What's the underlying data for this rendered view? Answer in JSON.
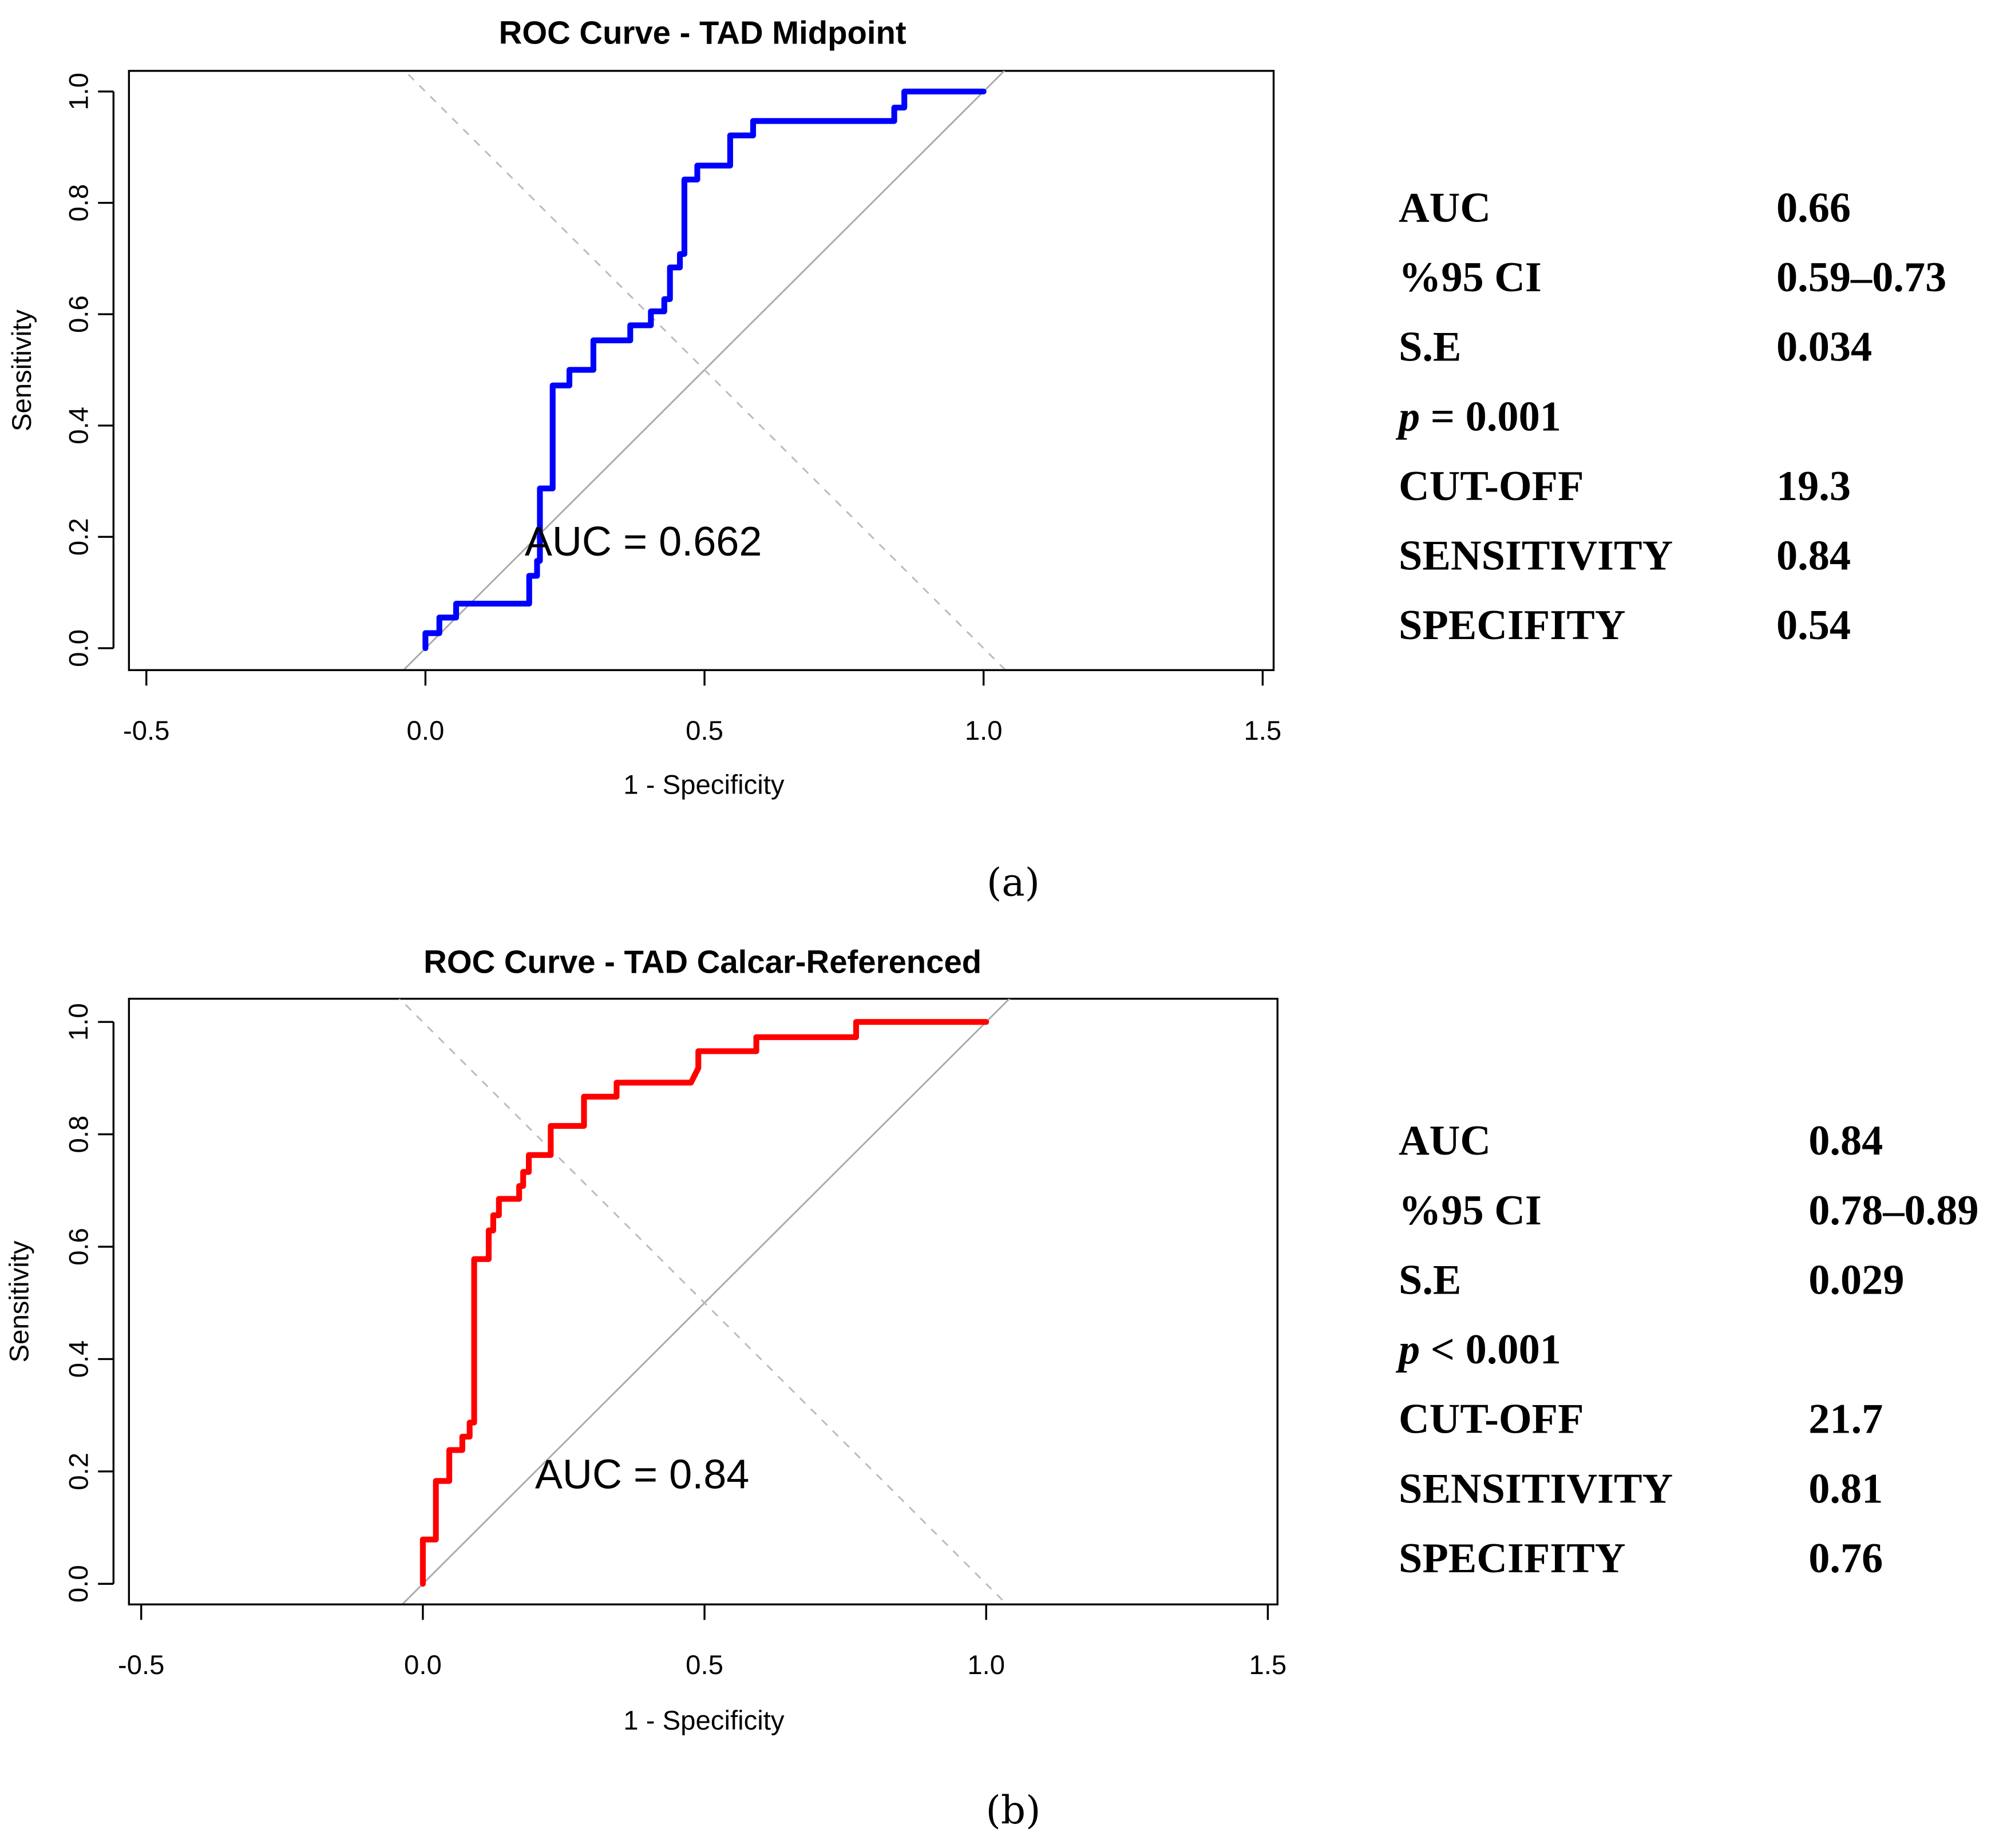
{
  "chart_data": [
    {
      "type": "line",
      "panel_label": "(a)",
      "title": "ROC Curve - TAD Midpoint",
      "xlabel": "1 - Specificity",
      "ylabel": "Sensitivity",
      "xlim": [
        -0.5,
        1.5
      ],
      "ylim": [
        0,
        1
      ],
      "xticks": [
        "-0.5",
        "0.0",
        "0.5",
        "1.0",
        "1.5"
      ],
      "yticks": [
        "0.0",
        "0.2",
        "0.4",
        "0.6",
        "0.8",
        "1.0"
      ],
      "annotation": "AUC = 0.662",
      "color": "#0000ff",
      "series": [
        {
          "name": "TAD Midpoint",
          "x": [
            0,
            0,
            0.025,
            0.025,
            0.055,
            0.055,
            0.186,
            0.186,
            0.2,
            0.2,
            0.205,
            0.205,
            0.228,
            0.228,
            0.258,
            0.258,
            0.301,
            0.301,
            0.367,
            0.367,
            0.404,
            0.404,
            0.428,
            0.428,
            0.438,
            0.438,
            0.456,
            0.456,
            0.464,
            0.464,
            0.487,
            0.487,
            0.546,
            0.546,
            0.587,
            0.587,
            0.84,
            0.84,
            0.858,
            0.858,
            1.0
          ],
          "y": [
            0,
            0.027,
            0.027,
            0.055,
            0.055,
            0.08,
            0.08,
            0.13,
            0.13,
            0.157,
            0.157,
            0.287,
            0.287,
            0.472,
            0.472,
            0.5,
            0.5,
            0.553,
            0.553,
            0.58,
            0.58,
            0.605,
            0.605,
            0.627,
            0.627,
            0.684,
            0.684,
            0.708,
            0.708,
            0.842,
            0.842,
            0.867,
            0.867,
            0.921,
            0.921,
            0.947,
            0.947,
            0.971,
            0.971,
            1.0,
            1.0
          ]
        }
      ],
      "stats": [
        {
          "label": "AUC",
          "value": "0.66"
        },
        {
          "label": "%95 CI",
          "value": "0.59–0.73"
        },
        {
          "label": "S.E",
          "value": "0.034"
        },
        {
          "label_p": "p",
          "label": " = 0.001",
          "value": ""
        },
        {
          "label": "CUT-OFF",
          "value": "19.3"
        },
        {
          "label": "SENSITIVITY",
          "value": "0.84"
        },
        {
          "label": "SPECIFITY",
          "value": "0.54"
        }
      ]
    },
    {
      "type": "line",
      "panel_label": "(b)",
      "title": "ROC Curve - TAD Calcar-Referenced",
      "xlabel": "1 - Specificity",
      "ylabel": "Sensitivity",
      "xlim": [
        -0.5,
        1.5
      ],
      "ylim": [
        0,
        1
      ],
      "xticks": [
        "-0.5",
        "0.0",
        "0.5",
        "1.0",
        "1.5"
      ],
      "yticks": [
        "0.0",
        "0.2",
        "0.4",
        "0.6",
        "0.8",
        "1.0"
      ],
      "annotation": "AUC = 0.84",
      "color": "#ff0000",
      "series": [
        {
          "name": "TAD Calcar-Referenced",
          "x": [
            0,
            0,
            0.023,
            0.023,
            0.047,
            0.047,
            0.07,
            0.07,
            0.083,
            0.083,
            0.091,
            0.091,
            0.117,
            0.117,
            0.125,
            0.125,
            0.135,
            0.135,
            0.171,
            0.171,
            0.178,
            0.178,
            0.188,
            0.188,
            0.227,
            0.227,
            0.286,
            0.286,
            0.344,
            0.344,
            0.476,
            0.489,
            0.489,
            0.592,
            0.592,
            0.769,
            0.769,
            1.0
          ],
          "y": [
            0,
            0.079,
            0.079,
            0.183,
            0.183,
            0.238,
            0.238,
            0.262,
            0.262,
            0.287,
            0.287,
            0.578,
            0.578,
            0.629,
            0.629,
            0.656,
            0.656,
            0.685,
            0.685,
            0.708,
            0.708,
            0.733,
            0.733,
            0.763,
            0.763,
            0.815,
            0.815,
            0.867,
            0.867,
            0.892,
            0.892,
            0.918,
            0.948,
            0.948,
            0.973,
            0.973,
            1.0,
            1.0
          ]
        }
      ],
      "stats": [
        {
          "label": "AUC",
          "value": "0.84"
        },
        {
          "label": "%95 CI",
          "value": "0.78–0.89"
        },
        {
          "label": "S.E",
          "value": "0.029"
        },
        {
          "label_p": "p",
          "label": " < 0.001",
          "value": ""
        },
        {
          "label": "CUT-OFF",
          "value": "21.7"
        },
        {
          "label": "SENSITIVITY",
          "value": "0.81"
        },
        {
          "label": "SPECIFITY",
          "value": "0.76"
        }
      ]
    }
  ]
}
